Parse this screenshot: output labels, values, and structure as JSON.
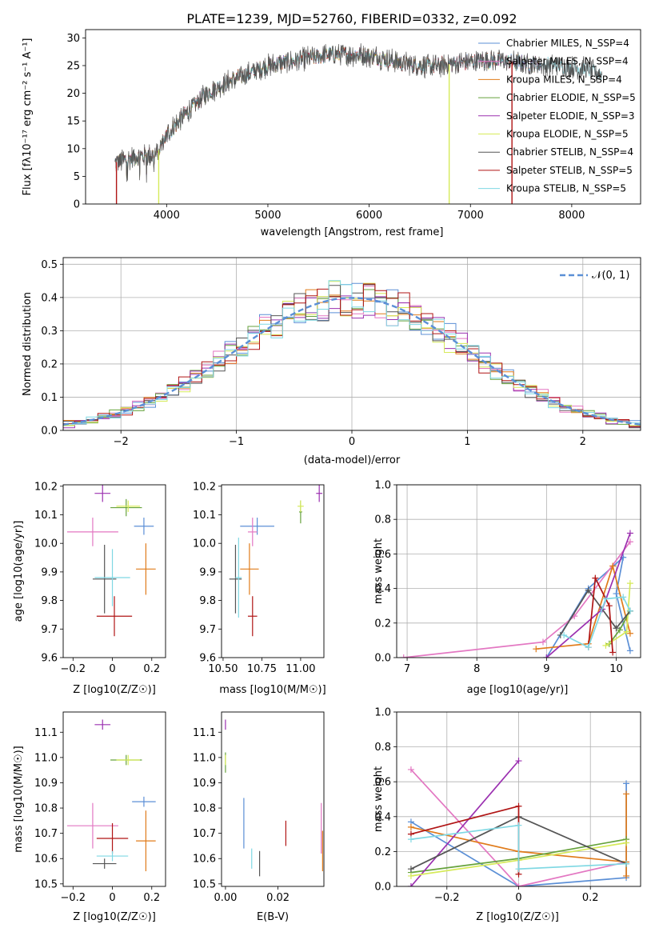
{
  "figure": {
    "title": "PLATE=1239, MJD=52760, FIBERID=0332, z=0.092"
  },
  "colors": {
    "Chabrier MILES": "#5b8fd6",
    "Salpeter MILES": "#e377c2",
    "Kroupa MILES": "#e07b1a",
    "Chabrier ELODIE": "#66a23c",
    "Salpeter ELODIE": "#9b30b0",
    "Kroupa ELODIE": "#d6ea5a",
    "Chabrier STELIB": "#555555",
    "Salpeter STELIB": "#b01515",
    "Kroupa STELIB": "#7fd8e3"
  },
  "chart_data": [
    {
      "id": "spectrum",
      "type": "line",
      "title": "PLATE=1239, MJD=52760, FIBERID=0332, z=0.092",
      "xlabel": "wavelength [Angstrom, rest frame]",
      "ylabel": "Flux [f_λ 10^-17 erg cm^-2 s^-1 A^-1]",
      "xlim": [
        3200,
        8680
      ],
      "ylim": [
        0,
        31.5
      ],
      "xticks": [
        4000,
        5000,
        6000,
        7000,
        8000
      ],
      "yticks": [
        0,
        5,
        10,
        15,
        20,
        25,
        30
      ],
      "grid": false,
      "legend_position": "upper right",
      "series": [
        {
          "name": "Chabrier MILES, N_SSP=4"
        },
        {
          "name": "Salpeter MILES, N_SSP=4"
        },
        {
          "name": "Kroupa MILES, N_SSP=4"
        },
        {
          "name": "Chabrier ELODIE, N_SSP=5"
        },
        {
          "name": "Salpeter ELODIE, N_SSP=3"
        },
        {
          "name": "Kroupa ELODIE, N_SSP=5"
        },
        {
          "name": "Chabrier STELIB, N_SSP=4"
        },
        {
          "name": "Salpeter STELIB, N_SSP=5"
        },
        {
          "name": "Kroupa STELIB, N_SSP=5"
        }
      ],
      "continuum_points": [
        [
          3490,
          7.5
        ],
        [
          3700,
          8.5
        ],
        [
          3900,
          9.0
        ],
        [
          4000,
          12.5
        ],
        [
          4200,
          16.5
        ],
        [
          4400,
          20.0
        ],
        [
          4600,
          22.0
        ],
        [
          4800,
          23.5
        ],
        [
          5000,
          25.0
        ],
        [
          5300,
          26.0
        ],
        [
          5600,
          27.0
        ],
        [
          5900,
          27.0
        ],
        [
          6100,
          26.5
        ],
        [
          6300,
          25.5
        ],
        [
          6600,
          24.8
        ],
        [
          6900,
          25.5
        ],
        [
          7200,
          26.0
        ],
        [
          7500,
          25.5
        ],
        [
          7800,
          25.0
        ],
        [
          8100,
          24.5
        ],
        [
          8300,
          23.5
        ]
      ],
      "drops": [
        {
          "x": 3505,
          "to": 0,
          "series": "Salpeter STELIB"
        },
        {
          "x": 3922,
          "to": 0,
          "series": "Kroupa ELODIE"
        },
        {
          "x": 6790,
          "to": 0,
          "series": "Kroupa ELODIE"
        },
        {
          "x": 7410,
          "to": 0,
          "series": "Salpeter STELIB"
        }
      ]
    },
    {
      "id": "residuals",
      "type": "histogram",
      "xlabel": "(data-model)/error",
      "ylabel": "Normed distribution",
      "xlim": [
        -2.5,
        2.5
      ],
      "ylim": [
        0,
        0.52
      ],
      "xticks": [
        -2,
        -1,
        0,
        1,
        2
      ],
      "yticks": [
        0.0,
        0.1,
        0.2,
        0.3,
        0.4,
        0.5
      ],
      "grid": true,
      "legend_position": "upper right",
      "reference": {
        "name": "𝒩(0, 1)",
        "mu": 0,
        "sigma": 1
      },
      "bin_width": 0.1
    },
    {
      "id": "age-vs-Z",
      "type": "scatter",
      "xlabel": "Z [log10(Z/Z☉)]",
      "ylabel": "age [log10(age/yr)]",
      "xlim": [
        -0.25,
        0.27
      ],
      "ylim": [
        9.6,
        10.205
      ],
      "xticks": [
        -0.2,
        0.0,
        0.2
      ],
      "yticks": [
        9.6,
        9.7,
        9.8,
        9.9,
        10.0,
        10.1,
        10.2
      ],
      "points": [
        {
          "series": "Chabrier MILES",
          "x": 0.16,
          "xerr": 0.05,
          "y": 10.06,
          "yerr": 0.03
        },
        {
          "series": "Salpeter MILES",
          "x": -0.1,
          "xerr": 0.13,
          "y": 10.04,
          "yerr": 0.05
        },
        {
          "series": "Kroupa MILES",
          "x": 0.17,
          "xerr": 0.05,
          "y": 9.91,
          "yerr": 0.09
        },
        {
          "series": "Chabrier ELODIE",
          "x": 0.07,
          "xerr": 0.08,
          "y": 10.125,
          "yerr": 0.03
        },
        {
          "series": "Salpeter ELODIE",
          "x": -0.05,
          "xerr": 0.04,
          "y": 10.175,
          "yerr": 0.03
        },
        {
          "series": "Kroupa ELODIE",
          "x": 0.08,
          "xerr": 0.06,
          "y": 10.13,
          "yerr": 0.02
        },
        {
          "series": "Chabrier STELIB",
          "x": -0.04,
          "xerr": 0.06,
          "y": 9.875,
          "yerr": 0.12
        },
        {
          "series": "Salpeter STELIB",
          "x": 0.01,
          "xerr": 0.09,
          "y": 9.745,
          "yerr": 0.07
        },
        {
          "series": "Kroupa STELIB",
          "x": 0.0,
          "xerr": 0.09,
          "y": 9.88,
          "yerr": 0.1
        }
      ]
    },
    {
      "id": "age-vs-mass",
      "type": "scatter",
      "xlabel": "mass [log10(M/M☉)]",
      "ylabel": "",
      "xlim": [
        10.49,
        11.15
      ],
      "ylim": [
        9.6,
        10.205
      ],
      "xticks": [
        10.5,
        10.75,
        11.0
      ],
      "xtick_labels": [
        "10.50",
        "10.75",
        "11.00"
      ],
      "yticks": [
        9.6,
        9.7,
        9.8,
        9.9,
        10.0,
        10.1,
        10.2
      ],
      "points": [
        {
          "series": "Chabrier MILES",
          "x": 10.72,
          "xerr": 0.11,
          "y": 10.06,
          "yerr": 0.03
        },
        {
          "series": "Salpeter MILES",
          "x": 10.69,
          "xerr": 0.03,
          "y": 10.04,
          "yerr": 0.05
        },
        {
          "series": "Kroupa MILES",
          "x": 10.67,
          "xerr": 0.06,
          "y": 9.91,
          "yerr": 0.09
        },
        {
          "series": "Chabrier ELODIE",
          "x": 11.0,
          "xerr": 0.01,
          "y": 10.11,
          "yerr": 0.04
        },
        {
          "series": "Salpeter ELODIE",
          "x": 11.12,
          "xerr": 0.02,
          "y": 10.175,
          "yerr": 0.03
        },
        {
          "series": "Kroupa ELODIE",
          "x": 11.0,
          "xerr": 0.02,
          "y": 10.13,
          "yerr": 0.02
        },
        {
          "series": "Chabrier STELIB",
          "x": 10.58,
          "xerr": 0.04,
          "y": 9.875,
          "yerr": 0.12
        },
        {
          "series": "Salpeter STELIB",
          "x": 10.69,
          "xerr": 0.03,
          "y": 9.745,
          "yerr": 0.07
        },
        {
          "series": "Kroupa STELIB",
          "x": 10.6,
          "xerr": 0.02,
          "y": 9.88,
          "yerr": 0.14
        }
      ]
    },
    {
      "id": "weight-vs-age",
      "type": "line",
      "xlabel": "age [log10(age/yr)]",
      "ylabel": "mass weight",
      "xlim": [
        6.85,
        10.35
      ],
      "ylim": [
        0,
        1.0
      ],
      "xticks": [
        7,
        8,
        9,
        10
      ],
      "yticks": [
        0.0,
        0.2,
        0.4,
        0.6,
        0.8,
        1.0
      ],
      "grid": true,
      "series": [
        {
          "series": "Chabrier MILES",
          "points": [
            [
              9.0,
              0.0
            ],
            [
              9.6,
              0.4
            ],
            [
              10.1,
              0.58
            ],
            [
              10.0,
              0.37
            ],
            [
              10.2,
              0.04
            ]
          ]
        },
        {
          "series": "Salpeter MILES",
          "points": [
            [
              6.95,
              0.0
            ],
            [
              8.95,
              0.09
            ],
            [
              9.4,
              0.24
            ],
            [
              10.2,
              0.67
            ]
          ]
        },
        {
          "series": "Kroupa MILES",
          "points": [
            [
              8.85,
              0.05
            ],
            [
              9.6,
              0.08
            ],
            [
              9.95,
              0.53
            ],
            [
              10.2,
              0.14
            ]
          ]
        },
        {
          "series": "Chabrier ELODIE",
          "points": [
            [
              9.9,
              0.08
            ],
            [
              10.05,
              0.16
            ],
            [
              10.2,
              0.27
            ]
          ]
        },
        {
          "series": "Salpeter ELODIE",
          "points": [
            [
              9.0,
              0.0
            ],
            [
              9.8,
              0.28
            ],
            [
              10.2,
              0.72
            ]
          ]
        },
        {
          "series": "Kroupa ELODIE",
          "points": [
            [
              9.85,
              0.07
            ],
            [
              10.15,
              0.15
            ],
            [
              10.2,
              0.43
            ]
          ]
        },
        {
          "series": "Chabrier STELIB",
          "points": [
            [
              9.2,
              0.13
            ],
            [
              9.6,
              0.39
            ],
            [
              10.0,
              0.17
            ],
            [
              10.2,
              0.27
            ]
          ]
        },
        {
          "series": "Salpeter STELIB",
          "points": [
            [
              9.6,
              0.06
            ],
            [
              9.7,
              0.46
            ],
            [
              9.9,
              0.3
            ],
            [
              9.95,
              0.03
            ]
          ]
        },
        {
          "series": "Kroupa STELIB",
          "points": [
            [
              9.25,
              0.13
            ],
            [
              9.6,
              0.06
            ],
            [
              9.85,
              0.34
            ],
            [
              10.1,
              0.35
            ],
            [
              10.2,
              0.27
            ]
          ]
        }
      ]
    },
    {
      "id": "mass-vs-Z",
      "type": "scatter",
      "xlabel": "Z [log10(Z/Z☉)]",
      "ylabel": "mass [log10(M/M☉)]",
      "xlim": [
        -0.25,
        0.27
      ],
      "ylim": [
        10.49,
        11.18
      ],
      "xticks": [
        -0.2,
        0.0,
        0.2
      ],
      "yticks": [
        10.5,
        10.6,
        10.7,
        10.8,
        10.9,
        11.0,
        11.1
      ],
      "points": [
        {
          "series": "Chabrier MILES",
          "x": 0.16,
          "xerr": 0.06,
          "y": 10.825,
          "yerr": 0.02
        },
        {
          "series": "Salpeter MILES",
          "x": -0.1,
          "xerr": 0.13,
          "y": 10.73,
          "yerr": 0.09
        },
        {
          "series": "Kroupa MILES",
          "x": 0.17,
          "xerr": 0.05,
          "y": 10.67,
          "yerr": 0.12
        },
        {
          "series": "Chabrier ELODIE",
          "x": 0.07,
          "xerr": 0.08,
          "y": 10.99,
          "yerr": 0.02
        },
        {
          "series": "Salpeter ELODIE",
          "x": -0.05,
          "xerr": 0.04,
          "y": 11.13,
          "yerr": 0.02
        },
        {
          "series": "Kroupa ELODIE",
          "x": 0.08,
          "xerr": 0.06,
          "y": 10.99,
          "yerr": 0.02
        },
        {
          "series": "Chabrier STELIB",
          "x": -0.04,
          "xerr": 0.06,
          "y": 10.58,
          "yerr": 0.02
        },
        {
          "series": "Salpeter STELIB",
          "x": 0.0,
          "xerr": 0.08,
          "y": 10.68,
          "yerr": 0.06
        },
        {
          "series": "Kroupa STELIB",
          "x": 0.0,
          "xerr": 0.08,
          "y": 10.61,
          "yerr": 0.02
        }
      ]
    },
    {
      "id": "mass-vs-ebv",
      "type": "scatter",
      "xlabel": "E(B-V)",
      "ylabel": "",
      "xlim": [
        -0.0015,
        0.0375
      ],
      "ylim": [
        10.49,
        11.18
      ],
      "xticks": [
        0.0,
        0.02
      ],
      "xtick_labels": [
        "0.00",
        "0.02"
      ],
      "yticks": [
        10.5,
        10.6,
        10.7,
        10.8,
        10.9,
        11.0,
        11.1
      ],
      "points": [
        {
          "series": "Chabrier MILES",
          "x": 0.007,
          "y": 10.74,
          "yerr": 0.1
        },
        {
          "series": "Salpeter MILES",
          "x": 0.0365,
          "y": 10.72,
          "yerr": 0.1
        },
        {
          "series": "Kroupa MILES",
          "x": 0.037,
          "y": 10.63,
          "yerr": 0.08
        },
        {
          "series": "Chabrier ELODIE",
          "x": 0.0,
          "y": 10.98,
          "yerr": 0.04
        },
        {
          "series": "Salpeter ELODIE",
          "x": 0.0,
          "y": 11.13,
          "yerr": 0.02
        },
        {
          "series": "Kroupa ELODIE",
          "x": 0.0,
          "y": 10.99,
          "yerr": 0.02
        },
        {
          "series": "Chabrier STELIB",
          "x": 0.013,
          "y": 10.58,
          "yerr": 0.05
        },
        {
          "series": "Salpeter STELIB",
          "x": 0.023,
          "y": 10.7,
          "yerr": 0.05
        },
        {
          "series": "Kroupa STELIB",
          "x": 0.01,
          "y": 10.6,
          "yerr": 0.04
        }
      ]
    },
    {
      "id": "weight-vs-Z",
      "type": "line",
      "xlabel": "Z [log10(Z/Z☉)]",
      "ylabel": "mass weight",
      "xlim": [
        -0.34,
        0.34
      ],
      "ylim": [
        0,
        1.0
      ],
      "xticks": [
        -0.2,
        0.0,
        0.2
      ],
      "yticks": [
        0.0,
        0.2,
        0.4,
        0.6,
        0.8,
        1.0
      ],
      "grid": true,
      "series": [
        {
          "series": "Chabrier MILES",
          "points": [
            [
              -0.3,
              0.37
            ],
            [
              0.0,
              0.0
            ],
            [
              0.3,
              0.05
            ],
            [
              0.3,
              0.59
            ]
          ]
        },
        {
          "series": "Salpeter MILES",
          "points": [
            [
              -0.3,
              0.67
            ],
            [
              0.0,
              0.0
            ],
            [
              0.3,
              0.14
            ]
          ]
        },
        {
          "series": "Kroupa MILES",
          "points": [
            [
              -0.3,
              0.34
            ],
            [
              0.0,
              0.2
            ],
            [
              0.3,
              0.14
            ],
            [
              0.3,
              0.53
            ],
            [
              0.3,
              0.06
            ]
          ]
        },
        {
          "series": "Chabrier ELODIE",
          "points": [
            [
              -0.3,
              0.08
            ],
            [
              0.0,
              0.16
            ],
            [
              0.3,
              0.27
            ]
          ]
        },
        {
          "series": "Salpeter ELODIE",
          "points": [
            [
              -0.3,
              0.0
            ],
            [
              0.0,
              0.72
            ]
          ]
        },
        {
          "series": "Kroupa ELODIE",
          "points": [
            [
              -0.3,
              0.06
            ],
            [
              0.0,
              0.15
            ],
            [
              0.3,
              0.25
            ]
          ]
        },
        {
          "series": "Chabrier STELIB",
          "points": [
            [
              -0.3,
              0.1
            ],
            [
              0.0,
              0.4
            ],
            [
              0.3,
              0.13
            ]
          ]
        },
        {
          "series": "Salpeter STELIB",
          "points": [
            [
              -0.3,
              0.3
            ],
            [
              0.0,
              0.46
            ],
            [
              0.0,
              0.07
            ]
          ]
        },
        {
          "series": "Kroupa STELIB",
          "points": [
            [
              -0.3,
              0.27
            ],
            [
              0.0,
              0.35
            ],
            [
              0.0,
              0.1
            ],
            [
              0.3,
              0.13
            ]
          ]
        }
      ]
    }
  ]
}
